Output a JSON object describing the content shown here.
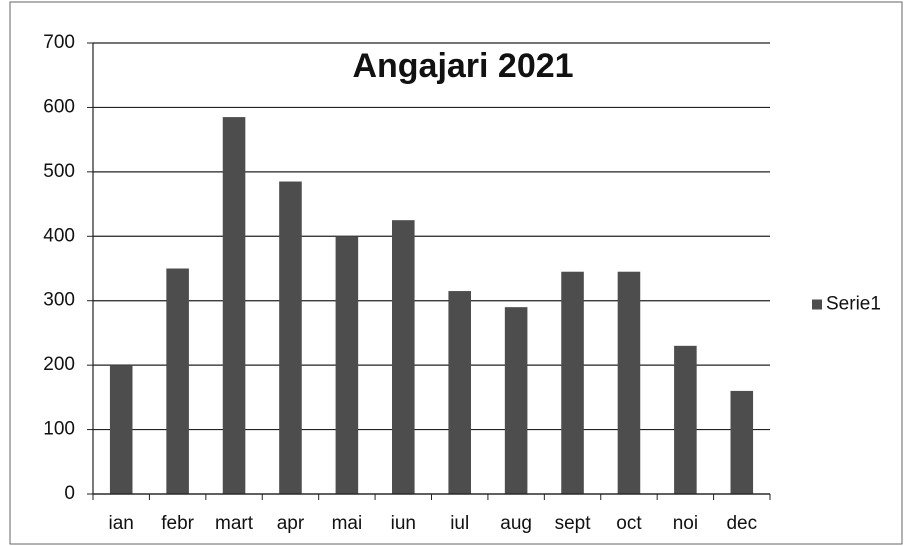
{
  "chart_data": {
    "type": "bar",
    "title": "Angajari 2021",
    "categories": [
      "ian",
      "febr",
      "mart",
      "apr",
      "mai",
      "iun",
      "iul",
      "aug",
      "sept",
      "oct",
      "noi",
      "dec"
    ],
    "series": [
      {
        "name": "Serie1",
        "color": "#4d4d4d",
        "values": [
          200,
          350,
          585,
          485,
          400,
          425,
          315,
          290,
          345,
          345,
          230,
          160
        ]
      }
    ],
    "ylim": [
      0,
      700
    ],
    "yticks": [
      0,
      100,
      200,
      300,
      400,
      500,
      600,
      700
    ],
    "grid": true,
    "legend": "right"
  }
}
